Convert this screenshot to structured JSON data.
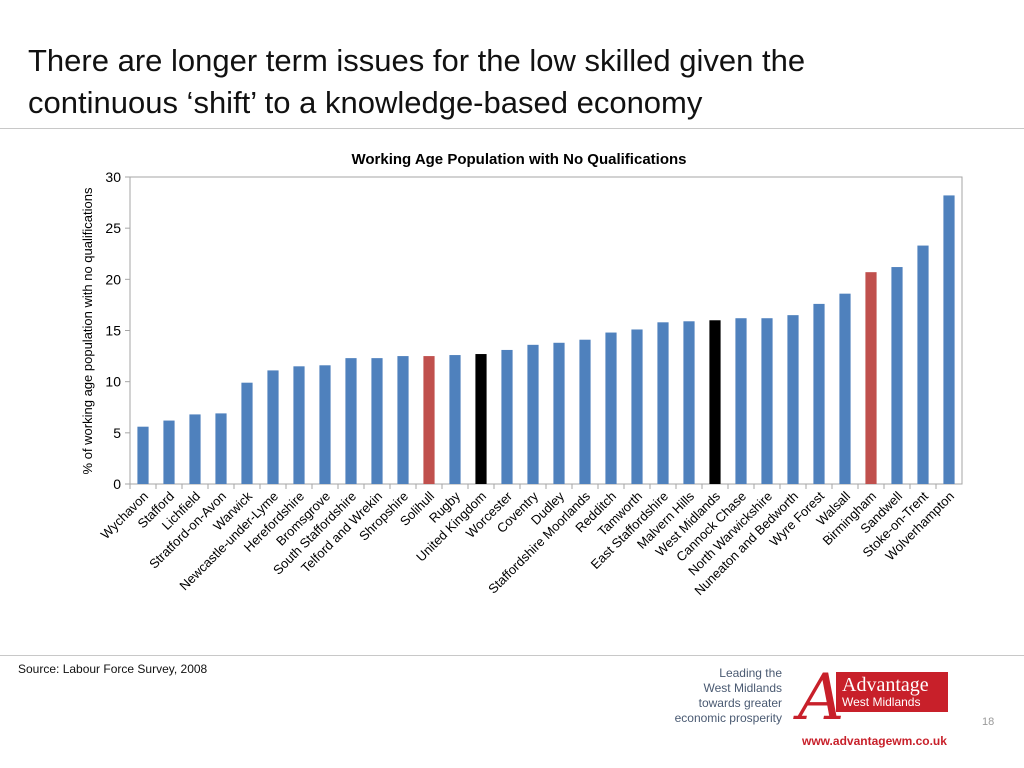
{
  "slide": {
    "title_line1": "There are longer term issues for the low skilled given the",
    "title_line2": "continuous ‘shift’ to a knowledge-based economy",
    "source": "Source: Labour Force Survey, 2008",
    "tagline": [
      "Leading the",
      "West Midlands",
      "towards greater",
      "economic prosperity"
    ],
    "logo_line1": "Advantage",
    "logo_line2": "West Midlands",
    "website": "www.advantagewm.co.uk",
    "page_number": "18"
  },
  "chart_data": {
    "type": "bar",
    "title": "Working Age Population with No Qualifications",
    "xlabel": "",
    "ylabel": "% of working age population with no qualifications",
    "ylim": [
      0,
      30
    ],
    "yticks": [
      "0",
      "5",
      "10",
      "15",
      "20",
      "25",
      "30"
    ],
    "grid": false,
    "legend": "none",
    "categories": [
      "Wychavon",
      "Stafford",
      "Lichfield",
      "Stratford-on-Avon",
      "Warwick",
      "Newcastle-under-Lyme",
      "Herefordshire",
      "Bromsgrove",
      "South Staffordshire",
      "Telford and Wrekin",
      "Shropshire",
      "Solihull",
      "Rugby",
      "United Kingdom",
      "Worcester",
      "Coventry",
      "Dudley",
      "Staffordshire Moorlands",
      "Redditch",
      "Tamworth",
      "East Staffordshire",
      "Malvern Hills",
      "West Midlands",
      "Cannock Chase",
      "North Warwickshire",
      "Nuneaton and Bedworth",
      "Wyre Forest",
      "Walsall",
      "Birmingham",
      "Sandwell",
      "Stoke-on-Trent",
      "Wolverhampton"
    ],
    "values": [
      5.6,
      6.2,
      6.8,
      6.9,
      9.9,
      11.1,
      11.5,
      11.6,
      12.3,
      12.3,
      12.5,
      12.5,
      12.6,
      12.7,
      13.1,
      13.6,
      13.8,
      14.1,
      14.8,
      15.1,
      15.8,
      15.9,
      16.0,
      16.2,
      16.2,
      16.5,
      17.6,
      18.6,
      20.7,
      21.2,
      23.3,
      28.2
    ],
    "colors": {
      "default": "#4f81bd",
      "highlight": "#c0504d",
      "benchmark": "#000000"
    },
    "bar_color_keys": [
      "default",
      "default",
      "default",
      "default",
      "default",
      "default",
      "default",
      "default",
      "default",
      "default",
      "default",
      "highlight",
      "default",
      "benchmark",
      "default",
      "default",
      "default",
      "default",
      "default",
      "default",
      "default",
      "default",
      "benchmark",
      "default",
      "default",
      "default",
      "default",
      "default",
      "highlight",
      "default",
      "default",
      "default"
    ]
  }
}
